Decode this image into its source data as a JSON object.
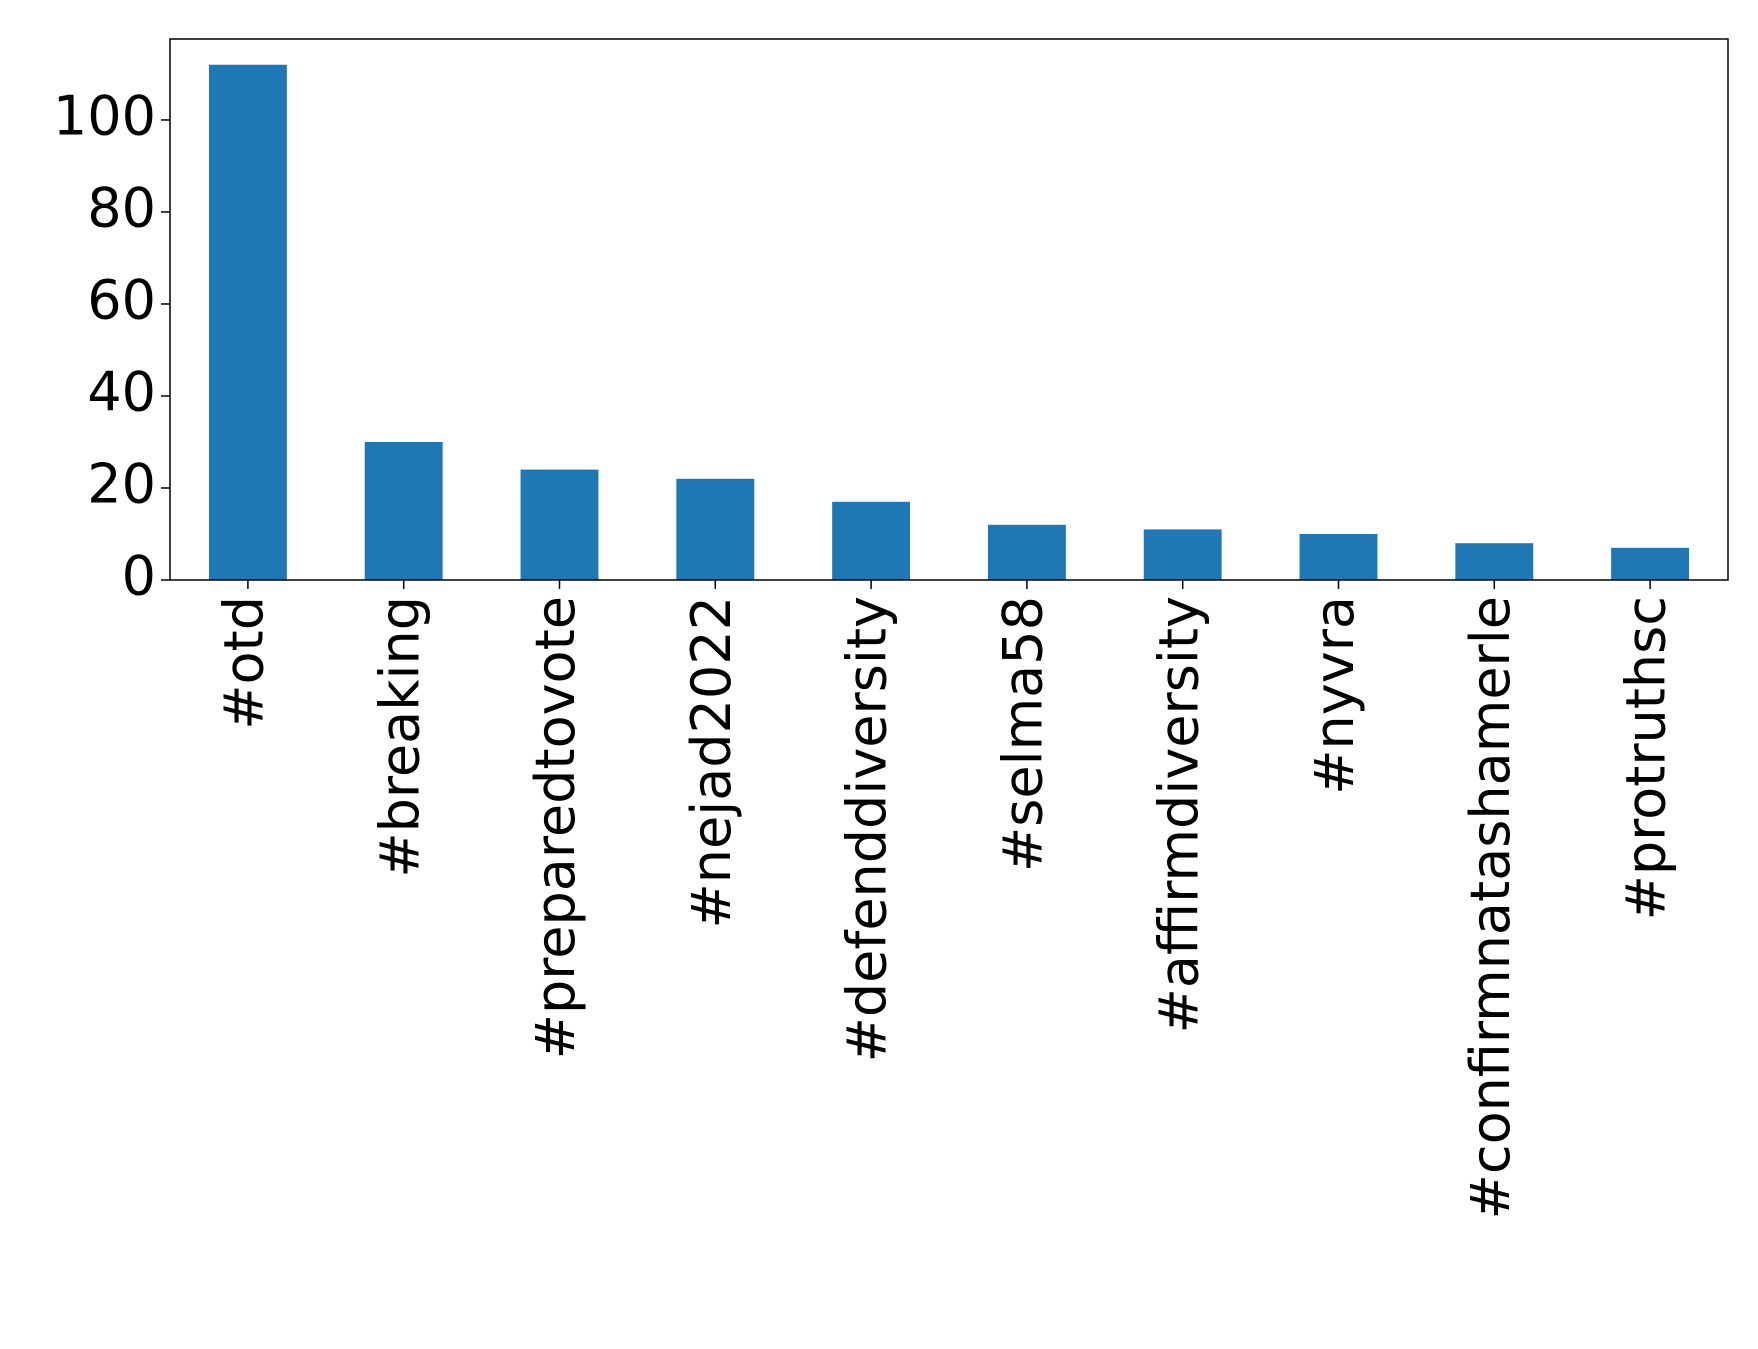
{
  "chart_data": {
    "type": "bar",
    "categories": [
      "#otd",
      "#breaking",
      "#preparedtovote",
      "#nejad2022",
      "#defenddiversity",
      "#selma58",
      "#affirmdiversity",
      "#nyvra",
      "#confirmnatashamerle",
      "#protruthsc"
    ],
    "values": [
      112,
      30,
      24,
      22,
      17,
      12,
      11,
      10,
      8,
      7
    ],
    "color": "#1f77b4",
    "ylim": [
      0,
      117.6
    ],
    "yticks": [
      0,
      20,
      40,
      60,
      80,
      100
    ],
    "grid": false
  }
}
